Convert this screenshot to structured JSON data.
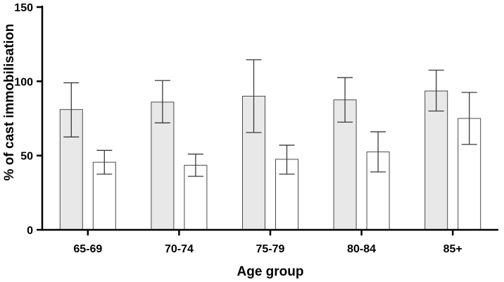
{
  "chart_data": {
    "type": "bar",
    "title": "",
    "xlabel": "Age group",
    "ylabel": "% of cast immobilisation",
    "categories": [
      "65-69",
      "70-74",
      "75-79",
      "80-84",
      "85+"
    ],
    "ylim": [
      0,
      150
    ],
    "yticks": [
      0,
      50,
      100,
      150
    ],
    "grid": false,
    "legend": "none",
    "series": [
      {
        "color": "#e8e8e8",
        "values": [
          81,
          86,
          90,
          87.5,
          93.5
        ],
        "error_low": [
          62.5,
          72,
          65.5,
          72.5,
          80
        ],
        "error_high": [
          99,
          100.5,
          114.5,
          102.5,
          107.5
        ]
      },
      {
        "color": "#ffffff",
        "values": [
          45.5,
          43.5,
          47.5,
          52.5,
          75
        ],
        "error_low": [
          37.5,
          36,
          37.5,
          39,
          57.5
        ],
        "error_high": [
          53.5,
          51,
          57,
          66,
          92.5
        ]
      }
    ]
  }
}
